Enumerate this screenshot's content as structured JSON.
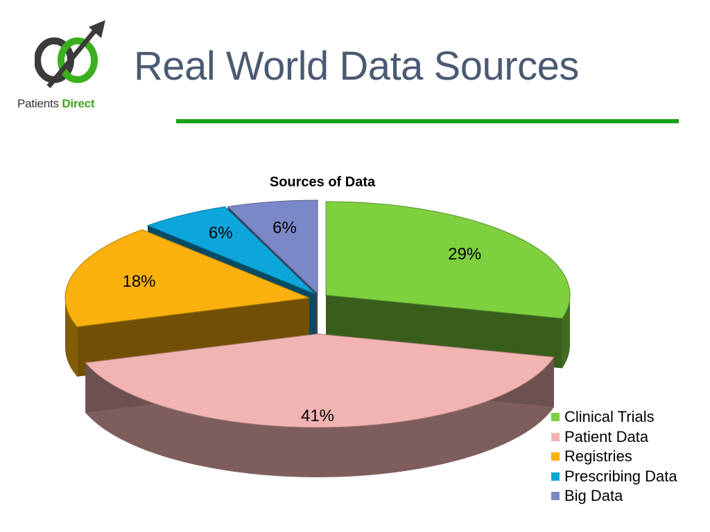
{
  "logo": {
    "text_plain": "Patients",
    "text_accent": "Direct"
  },
  "slide": {
    "title": "Real World Data Sources"
  },
  "chart_data": {
    "type": "pie",
    "title": "Sources of Data",
    "categories": [
      "Clinical Trials",
      "Patient Data",
      "Registries",
      "Prescribing Data",
      "Big Data"
    ],
    "values": [
      29,
      41,
      18,
      6,
      6
    ],
    "data_labels": [
      "29%",
      "41%",
      "18%",
      "6%",
      "6%"
    ],
    "colors": [
      "#7ed03f",
      "#f2b4b2",
      "#fab10d",
      "#0da6da",
      "#7b88c8"
    ],
    "legend_position": "bottom-right",
    "exploded": true,
    "three_d": true
  }
}
